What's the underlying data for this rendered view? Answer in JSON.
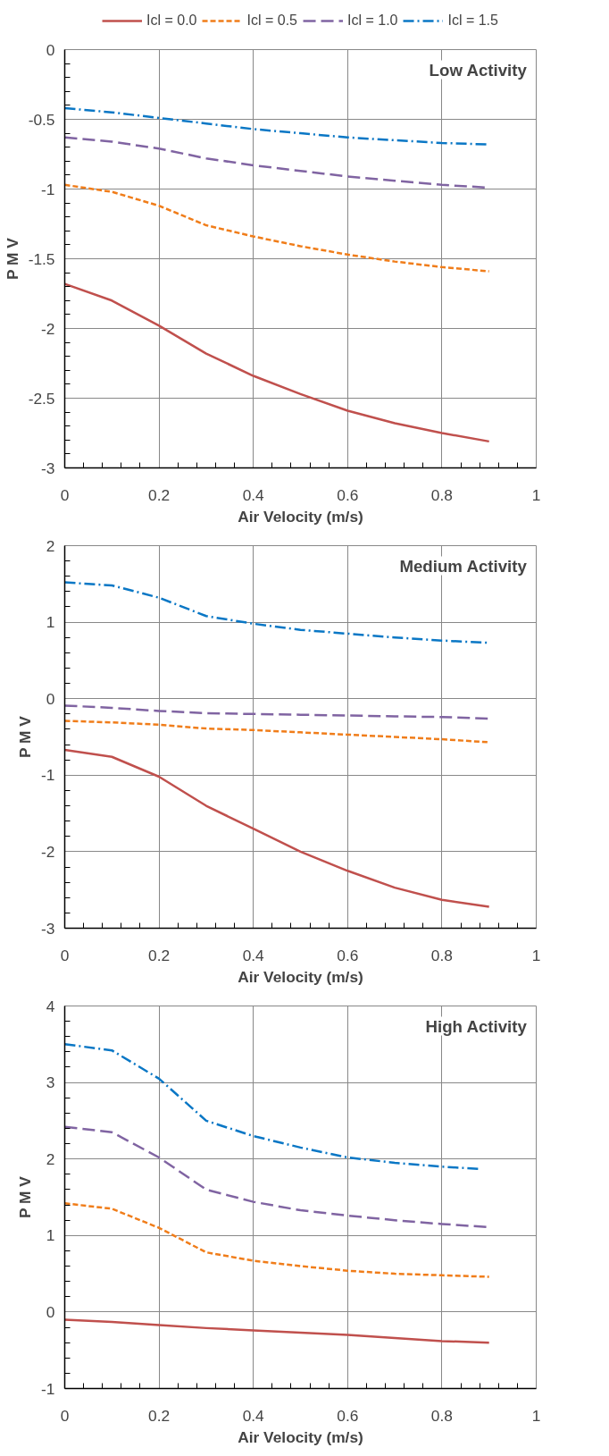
{
  "chart_data": [
    {
      "type": "line",
      "title": "Low Activity",
      "xlabel": "Air Velocity (m/s)",
      "ylabel": "P M V",
      "x": [
        0,
        0.1,
        0.2,
        0.3,
        0.4,
        0.5,
        0.6,
        0.7,
        0.8,
        0.9
      ],
      "xlim": [
        0,
        1
      ],
      "xticks": [
        0,
        0.2,
        0.4,
        0.6,
        0.8,
        1
      ],
      "ylim": [
        -3,
        0
      ],
      "yticks": [
        -3,
        -2.5,
        -2,
        -1.5,
        -1,
        -0.5,
        0
      ],
      "grid": true,
      "legend": "top",
      "series": [
        {
          "name": "Icl = 0.0",
          "color": "#c0504d",
          "line_style": "solid",
          "values": [
            -1.68,
            -1.8,
            -1.98,
            -2.18,
            -2.34,
            -2.47,
            -2.59,
            -2.68,
            -2.75,
            -2.81
          ]
        },
        {
          "name": "Icl = 0.5",
          "color": "#f07d1a",
          "line_style": "dashed",
          "values": [
            -0.97,
            -1.02,
            -1.12,
            -1.26,
            -1.34,
            -1.41,
            -1.47,
            -1.52,
            -1.56,
            -1.59
          ]
        },
        {
          "name": "Icl = 1.0",
          "color": "#8064a2",
          "line_style": "longdash",
          "values": [
            -0.63,
            -0.66,
            -0.71,
            -0.78,
            -0.83,
            -0.87,
            -0.91,
            -0.94,
            -0.97,
            -0.99
          ]
        },
        {
          "name": "Icl = 1.5",
          "color": "#0a77c5",
          "line_style": "dashdot",
          "values": [
            -0.42,
            -0.45,
            -0.49,
            -0.53,
            -0.57,
            -0.6,
            -0.63,
            -0.65,
            -0.67,
            -0.68
          ]
        }
      ]
    },
    {
      "type": "line",
      "title": "Medium Activity",
      "xlabel": "Air Velocity (m/s)",
      "ylabel": "P M V",
      "x": [
        0,
        0.1,
        0.2,
        0.3,
        0.4,
        0.5,
        0.6,
        0.7,
        0.8,
        0.9
      ],
      "xlim": [
        0,
        1
      ],
      "xticks": [
        0,
        0.2,
        0.4,
        0.6,
        0.8,
        1
      ],
      "ylim": [
        -3,
        2
      ],
      "yticks": [
        -3,
        -2,
        -1,
        0,
        1,
        2
      ],
      "grid": true,
      "series": [
        {
          "color": "#c0504d",
          "line_style": "solid",
          "values": [
            -0.67,
            -0.76,
            -1.02,
            -1.4,
            -1.7,
            -2.0,
            -2.25,
            -2.47,
            -2.63,
            -2.72
          ]
        },
        {
          "color": "#f07d1a",
          "line_style": "dashed",
          "values": [
            -0.29,
            -0.31,
            -0.34,
            -0.39,
            -0.41,
            -0.44,
            -0.47,
            -0.5,
            -0.53,
            -0.57
          ]
        },
        {
          "color": "#8064a2",
          "line_style": "longdash",
          "values": [
            -0.09,
            -0.12,
            -0.16,
            -0.19,
            -0.2,
            -0.21,
            -0.22,
            -0.23,
            -0.24,
            -0.26
          ]
        },
        {
          "color": "#0a77c5",
          "line_style": "dashdot",
          "values": [
            1.52,
            1.48,
            1.32,
            1.08,
            0.98,
            0.9,
            0.85,
            0.8,
            0.76,
            0.73
          ]
        }
      ]
    },
    {
      "type": "line",
      "title": "High Activity",
      "xlabel": "Air Velocity (m/s)",
      "ylabel": "P M V",
      "x": [
        0,
        0.1,
        0.2,
        0.3,
        0.4,
        0.5,
        0.6,
        0.7,
        0.8,
        0.9
      ],
      "xlim": [
        0,
        1
      ],
      "xticks": [
        0,
        0.2,
        0.4,
        0.6,
        0.8,
        1
      ],
      "ylim": [
        -1,
        4
      ],
      "yticks": [
        -1,
        0,
        1,
        2,
        3,
        4
      ],
      "grid": true,
      "series": [
        {
          "color": "#c0504d",
          "line_style": "solid",
          "values": [
            -0.1,
            -0.13,
            -0.17,
            -0.21,
            -0.24,
            -0.27,
            -0.3,
            -0.34,
            -0.38,
            -0.4
          ]
        },
        {
          "color": "#f07d1a",
          "line_style": "dashed",
          "values": [
            1.42,
            1.35,
            1.1,
            0.78,
            0.67,
            0.6,
            0.54,
            0.5,
            0.48,
            0.46
          ]
        },
        {
          "color": "#8064a2",
          "line_style": "longdash",
          "values": [
            2.42,
            2.35,
            2.02,
            1.6,
            1.44,
            1.33,
            1.26,
            1.2,
            1.15,
            1.11
          ]
        },
        {
          "color": "#0a77c5",
          "line_style": "dashdot",
          "x": [
            0,
            0.1,
            0.2,
            0.3,
            0.4,
            0.5,
            0.6,
            0.7,
            0.8,
            0.88
          ],
          "values": [
            3.5,
            3.42,
            3.05,
            2.5,
            2.3,
            2.15,
            2.02,
            1.95,
            1.9,
            1.87
          ]
        }
      ]
    }
  ]
}
